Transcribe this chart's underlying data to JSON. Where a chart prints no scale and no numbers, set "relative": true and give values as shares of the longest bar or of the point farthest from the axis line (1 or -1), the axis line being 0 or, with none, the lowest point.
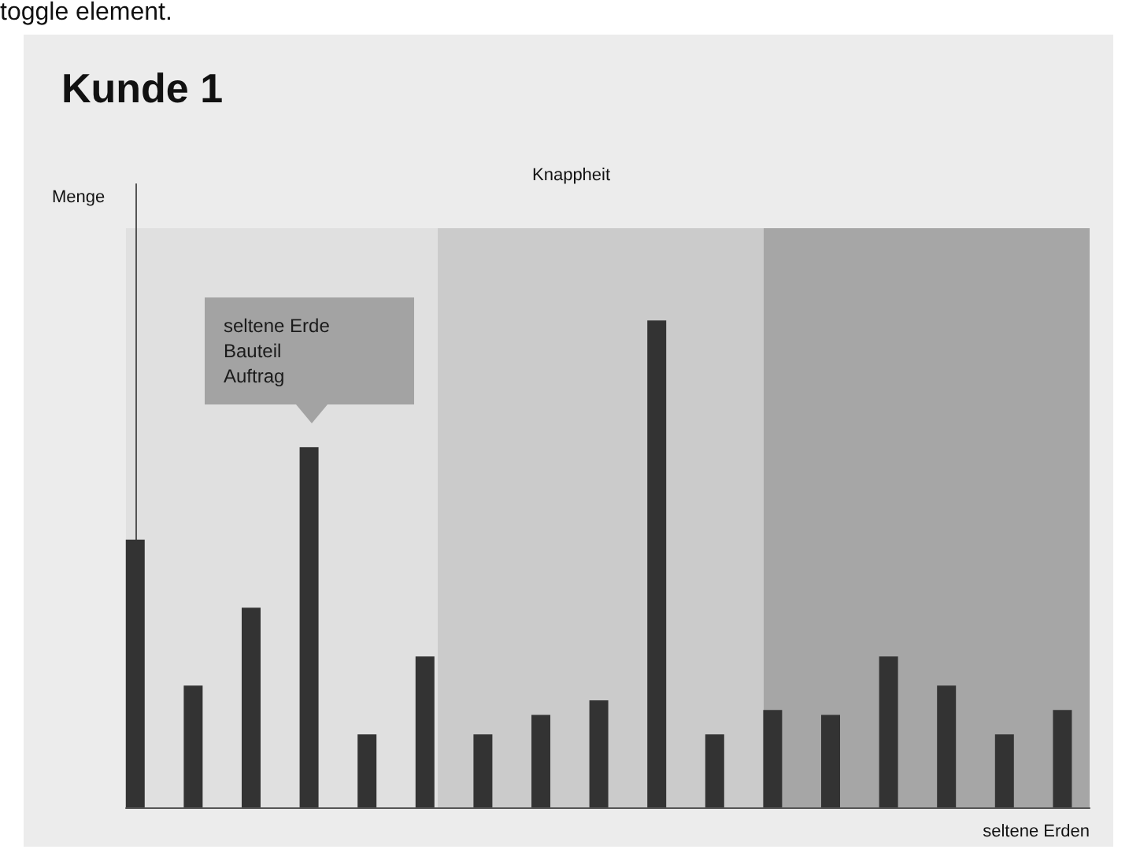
{
  "chart_data": {
    "type": "bar",
    "title": "Kunde 1",
    "xlabel": "seltene Erden",
    "relative": true,
    "tick_labels": false,
    "grid": false,
    "categories": [
      null,
      null,
      null,
      null,
      null,
      null,
      null,
      null,
      null,
      null,
      null,
      null,
      null,
      null,
      null,
      null,
      null
    ],
    "values": [
      0.55,
      0.25,
      0.41,
      0.74,
      0.15,
      0.31,
      0.15,
      0.19,
      0.22,
      1,
      0.15,
      0.2,
      0.19,
      0.31,
      0.25,
      0.15,
      0.2
    ],
    "color": "#333333",
    "annotations": [
      "toggle element.",
      "Knappheit",
      "seltene Erde\nBauteil\nAuftrag",
      "Menge"
    ]
  }
}
